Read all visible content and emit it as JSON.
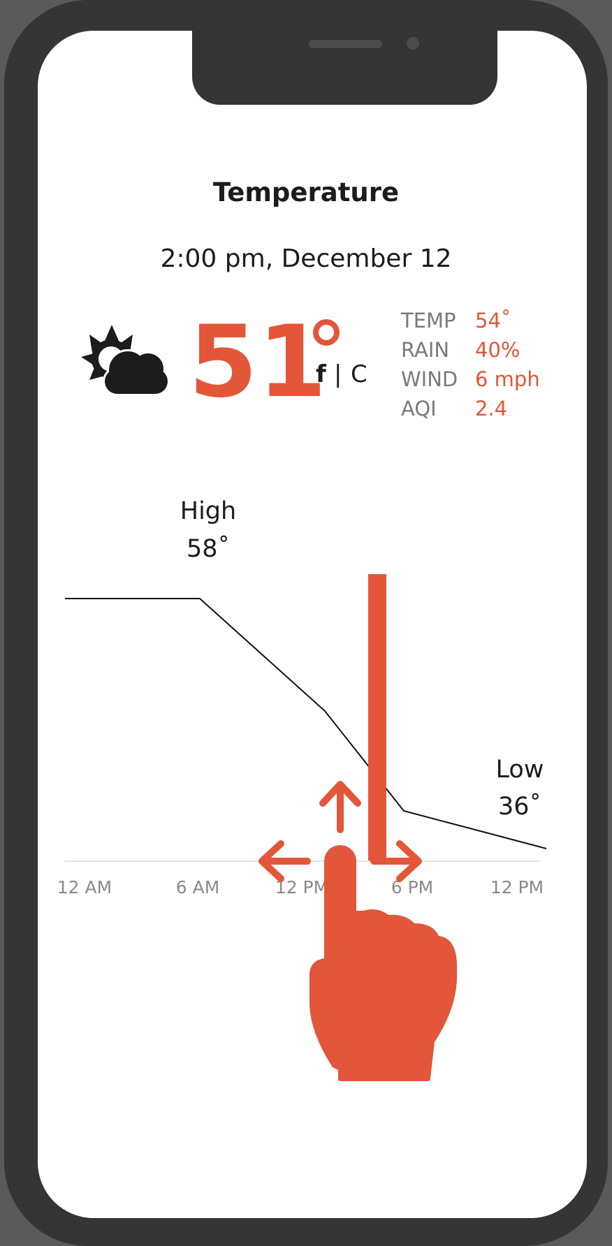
{
  "header": {
    "title": "Temperature",
    "datetime": "2:00 pm, December 12"
  },
  "current": {
    "temperature": "51",
    "condition_icon": "partly-cloudy-icon",
    "unit_f": "f",
    "unit_separator": "|",
    "unit_c": "C"
  },
  "stats": [
    {
      "label": "TEMP",
      "value": "54˚"
    },
    {
      "label": "RAIN",
      "value": "40%"
    },
    {
      "label": "WIND",
      "value": "6 mph"
    },
    {
      "label": "AQI",
      "value": "2.4"
    }
  ],
  "chart": {
    "high_label": "High",
    "high_value": "58˚",
    "low_label": "Low",
    "low_value": "36˚",
    "x_ticks": [
      "12 AM",
      "6 AM",
      "12 PM",
      "6 PM",
      "12 PM"
    ]
  },
  "gesture": {
    "icon": "swipe-hand-icon"
  },
  "colors": {
    "accent": "#e35639",
    "frame": "#353535",
    "text": "#1c1c1c",
    "muted": "#7a7a7a"
  }
}
